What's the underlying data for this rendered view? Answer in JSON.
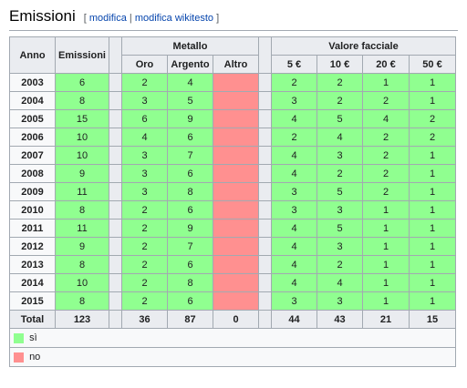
{
  "section": {
    "title": "Emissioni",
    "edit_open": "[",
    "edit_link": "modifica",
    "edit_sep": "|",
    "edit_wiki_link": "modifica wikitesto",
    "edit_close": "]"
  },
  "table": {
    "headers": {
      "year": "Anno",
      "emissions": "Emissioni",
      "metal": "Metallo",
      "face_value": "Valore facciale",
      "gold": "Oro",
      "silver": "Argento",
      "other": "Altro",
      "v5": "5 €",
      "v10": "10 €",
      "v20": "20 €",
      "v50": "50 €"
    },
    "rows": [
      {
        "year": "2003",
        "emissions": "6",
        "gold": "2",
        "silver": "4",
        "other": "",
        "v5": "2",
        "v10": "2",
        "v20": "1",
        "v50": "1"
      },
      {
        "year": "2004",
        "emissions": "8",
        "gold": "3",
        "silver": "5",
        "other": "",
        "v5": "3",
        "v10": "2",
        "v20": "2",
        "v50": "1"
      },
      {
        "year": "2005",
        "emissions": "15",
        "gold": "6",
        "silver": "9",
        "other": "",
        "v5": "4",
        "v10": "5",
        "v20": "4",
        "v50": "2"
      },
      {
        "year": "2006",
        "emissions": "10",
        "gold": "4",
        "silver": "6",
        "other": "",
        "v5": "2",
        "v10": "4",
        "v20": "2",
        "v50": "2"
      },
      {
        "year": "2007",
        "emissions": "10",
        "gold": "3",
        "silver": "7",
        "other": "",
        "v5": "4",
        "v10": "3",
        "v20": "2",
        "v50": "1"
      },
      {
        "year": "2008",
        "emissions": "9",
        "gold": "3",
        "silver": "6",
        "other": "",
        "v5": "4",
        "v10": "2",
        "v20": "2",
        "v50": "1"
      },
      {
        "year": "2009",
        "emissions": "11",
        "gold": "3",
        "silver": "8",
        "other": "",
        "v5": "3",
        "v10": "5",
        "v20": "2",
        "v50": "1"
      },
      {
        "year": "2010",
        "emissions": "8",
        "gold": "2",
        "silver": "6",
        "other": "",
        "v5": "3",
        "v10": "3",
        "v20": "1",
        "v50": "1"
      },
      {
        "year": "2011",
        "emissions": "11",
        "gold": "2",
        "silver": "9",
        "other": "",
        "v5": "4",
        "v10": "5",
        "v20": "1",
        "v50": "1"
      },
      {
        "year": "2012",
        "emissions": "9",
        "gold": "2",
        "silver": "7",
        "other": "",
        "v5": "4",
        "v10": "3",
        "v20": "1",
        "v50": "1"
      },
      {
        "year": "2013",
        "emissions": "8",
        "gold": "2",
        "silver": "6",
        "other": "",
        "v5": "4",
        "v10": "2",
        "v20": "1",
        "v50": "1"
      },
      {
        "year": "2014",
        "emissions": "10",
        "gold": "2",
        "silver": "8",
        "other": "",
        "v5": "4",
        "v10": "4",
        "v20": "1",
        "v50": "1"
      },
      {
        "year": "2015",
        "emissions": "8",
        "gold": "2",
        "silver": "6",
        "other": "",
        "v5": "3",
        "v10": "3",
        "v20": "1",
        "v50": "1"
      }
    ],
    "total": {
      "label": "Total",
      "emissions": "123",
      "gold": "36",
      "silver": "87",
      "other": "0",
      "v5": "44",
      "v10": "43",
      "v20": "21",
      "v50": "15"
    }
  },
  "legend": {
    "yes_label": "sì",
    "no_label": "no",
    "yes_color": "#90ff90",
    "no_color": "#ff9090"
  }
}
